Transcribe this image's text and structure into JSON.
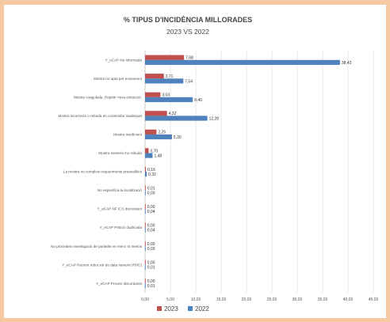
{
  "chart_data": {
    "type": "bar",
    "orientation": "horizontal",
    "title": "% TIPUS D'INCIDÈNCIA MILLORADES",
    "subtitle": "2023 VS 2022",
    "categories": [
      "Y_eCAP No informada",
      "Mostra no apta per enviament",
      "Mostra coagulada. Repetir nova extracció.",
      "Mostra incorrecte o rebuda en contenidor inadequat",
      "Mostra insuficient",
      "Mostra sense/a mo rebuda",
      "La mostra no compleix requeriments preanalítics",
      "No especifica la localització",
      "Y_eCAP NF ICS discordant",
      "Y_eCAP Petició duplicada",
      "No procedeix investigació de paràsits en menc nt mesos",
      "Y_eCAP Pacient rebut sol·de data nament (RHC)",
      "Y_eCAP Proves discordants"
    ],
    "series": [
      {
        "name": "2023",
        "color": "#c0504d",
        "values": [
          7.68,
          3.71,
          3.03,
          4.32,
          2.25,
          0.7,
          0.16,
          0.01,
          0.0,
          0.0,
          0.0,
          0.0,
          0.0
        ],
        "labels": [
          "7,68",
          "3,71",
          "3,03",
          "4,32",
          "2,25",
          "0,70",
          "0,16",
          "0,01",
          "0,00",
          "0,00",
          "0,00",
          "0,00",
          "0,00"
        ]
      },
      {
        "name": "2022",
        "color": "#4f81bd",
        "values": [
          38.42,
          7.54,
          9.4,
          12.28,
          5.3,
          1.48,
          0.32,
          0.03,
          0.04,
          0.04,
          0.03,
          0.01,
          0.01
        ],
        "labels": [
          "38,42",
          "7,54",
          "9,40",
          "12,28",
          "5,30",
          "1,48",
          "0,32",
          "0,03",
          "0,04",
          "0,04",
          "0,03",
          "0,01",
          "0,01"
        ]
      }
    ],
    "xlim": [
      0,
      45
    ],
    "xticks": [
      0,
      5,
      10,
      15,
      20,
      25,
      30,
      35,
      40,
      45
    ],
    "xtick_labels": [
      "0,00",
      "5,00",
      "10,00",
      "15,00",
      "20,00",
      "25,00",
      "30,00",
      "35,00",
      "40,00",
      "45,00"
    ],
    "grid": true,
    "legend_position": "bottom"
  }
}
